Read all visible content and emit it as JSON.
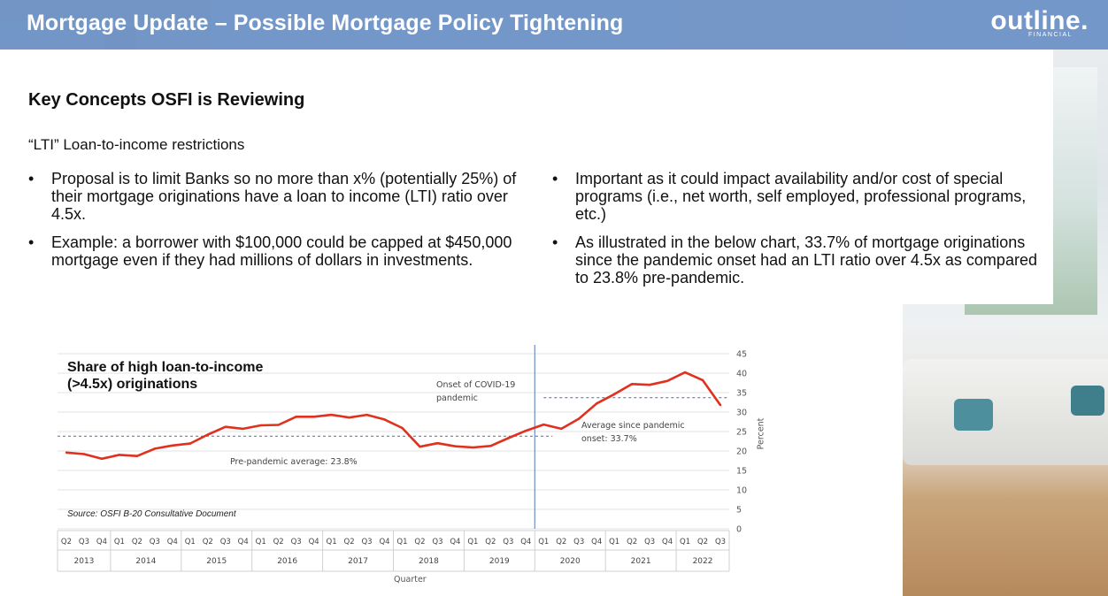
{
  "header": {
    "title": "Mortgage Update – Possible Mortgage Policy Tightening",
    "logo_word": "outline.",
    "logo_sub": "FINANCIAL"
  },
  "section": {
    "heading": "Key Concepts OSFI is Reviewing",
    "subheading": "“LTI” Loan-to-income restrictions"
  },
  "bullets_left": [
    "Proposal is to limit Banks so no more than x% (potentially 25%) of their mortgage originations have a loan to income (LTI) ratio over 4.5x.",
    "Example: a borrower with $100,000 could be capped at $450,000 mortgage even if they had millions of dollars in investments."
  ],
  "bullets_right": [
    "Important as it could impact availability and/or cost of special programs (i.e., net worth, self employed, professional programs, etc.)",
    "As illustrated in the below chart, 33.7% of mortgage originations since the pandemic onset had an LTI ratio over 4.5x as compared to 23.8% pre-pandemic."
  ],
  "colors": {
    "header_bg": "#6e93c6",
    "series_line": "#e0301e",
    "avg_line": "#4a6fa5",
    "covid_line": "#6b8fc8"
  },
  "chart_data": {
    "type": "line",
    "title": "Share of high loan-to-income (>4.5x) originations",
    "xlabel": "Quarter",
    "ylabel": "Percent",
    "ylim": [
      0,
      45
    ],
    "yticks": [
      0,
      5,
      10,
      15,
      20,
      25,
      30,
      35,
      40,
      45
    ],
    "y_axis_side": "right",
    "gridlines": true,
    "x": [
      "Q2",
      "Q3",
      "Q4",
      "Q1",
      "Q2",
      "Q3",
      "Q4",
      "Q1",
      "Q2",
      "Q3",
      "Q4",
      "Q1",
      "Q2",
      "Q3",
      "Q4",
      "Q1",
      "Q2",
      "Q3",
      "Q4",
      "Q1",
      "Q2",
      "Q3",
      "Q4",
      "Q1",
      "Q2",
      "Q3",
      "Q4",
      "Q1",
      "Q2",
      "Q3",
      "Q4",
      "Q1",
      "Q2",
      "Q3",
      "Q4",
      "Q1",
      "Q2",
      "Q3"
    ],
    "years": [
      {
        "label": "2013",
        "count": 3
      },
      {
        "label": "2014",
        "count": 4
      },
      {
        "label": "2015",
        "count": 4
      },
      {
        "label": "2016",
        "count": 4
      },
      {
        "label": "2017",
        "count": 4
      },
      {
        "label": "2018",
        "count": 4
      },
      {
        "label": "2019",
        "count": 4
      },
      {
        "label": "2020",
        "count": 4
      },
      {
        "label": "2021",
        "count": 4
      },
      {
        "label": "2022",
        "count": 3
      }
    ],
    "series": [
      {
        "values": [
          19.6,
          19.2,
          18.0,
          19.0,
          18.7,
          20.6,
          21.4,
          21.9,
          24.2,
          26.2,
          25.7,
          26.6,
          26.7,
          28.8,
          28.8,
          29.3,
          28.6,
          29.3,
          28.1,
          25.9,
          21.1,
          22.0,
          21.2,
          20.9,
          21.3,
          23.3,
          25.2,
          26.8,
          25.7,
          28.3,
          32.2,
          34.6,
          37.2,
          37.0,
          38.0,
          40.2,
          38.2,
          31.8
        ]
      }
    ],
    "reference_lines": [
      {
        "label": "Pre-pandemic average: 23.8%",
        "value": 23.8,
        "span": [
          0,
          27
        ]
      },
      {
        "label_lines": [
          "Average since pandemic",
          "onset: 33.7%"
        ],
        "value": 33.7,
        "span": [
          27,
          37
        ]
      }
    ],
    "vertical_marker": {
      "label_lines": [
        "Onset of COVID-19",
        "pandemic"
      ],
      "after_index": 26
    },
    "source": "Source: OSFI B-20 Consultative Document"
  }
}
